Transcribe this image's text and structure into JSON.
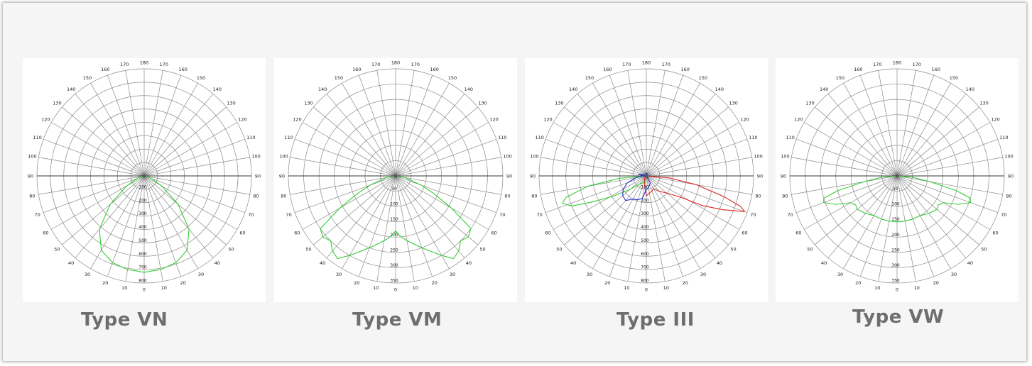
{
  "chart_data": [
    {
      "type": "polar",
      "caption": "Type VN",
      "angle_labels": [
        "0",
        "10",
        "20",
        "30",
        "40",
        "50",
        "60",
        "70",
        "80",
        "90",
        "100",
        "110",
        "120",
        "130",
        "140",
        "150",
        "160",
        "170",
        "180"
      ],
      "radial_labels": [
        "100",
        "200",
        "300",
        "400",
        "500",
        "600",
        "700",
        "800"
      ],
      "radial_max": 800,
      "grid": true,
      "series": [
        {
          "color": "#33cc33",
          "points": [
            [
              0,
              720
            ],
            [
              10,
              710
            ],
            [
              20,
              690
            ],
            [
              30,
              640
            ],
            [
              40,
              520
            ],
            [
              50,
              330
            ],
            [
              60,
              150
            ],
            [
              70,
              60
            ],
            [
              80,
              20
            ],
            [
              90,
              0
            ],
            [
              -10,
              710
            ],
            [
              -20,
              690
            ],
            [
              -30,
              640
            ],
            [
              -40,
              520
            ],
            [
              -50,
              330
            ],
            [
              -60,
              150
            ],
            [
              -70,
              60
            ],
            [
              -80,
              20
            ],
            [
              -90,
              0
            ]
          ]
        }
      ]
    },
    {
      "type": "polar",
      "caption": "Type VM",
      "angle_labels": [
        "0",
        "10",
        "20",
        "30",
        "40",
        "50",
        "60",
        "70",
        "80",
        "90",
        "100",
        "110",
        "120",
        "130",
        "140",
        "150",
        "160",
        "170",
        "180"
      ],
      "radial_labels": [
        "50",
        "100",
        "150",
        "200",
        "250",
        "300",
        "350"
      ],
      "radial_max": 350,
      "grid": true,
      "series": [
        {
          "color": "#33cc33",
          "points": [
            [
              0,
              180
            ],
            [
              5,
              200
            ],
            [
              10,
              215
            ],
            [
              20,
              250
            ],
            [
              30,
              300
            ],
            [
              35,
              330
            ],
            [
              40,
              320
            ],
            [
              45,
              300
            ],
            [
              50,
              310
            ],
            [
              55,
              300
            ],
            [
              60,
              210
            ],
            [
              65,
              140
            ],
            [
              70,
              90
            ],
            [
              80,
              30
            ],
            [
              90,
              0
            ],
            [
              -5,
              200
            ],
            [
              -10,
              215
            ],
            [
              -20,
              250
            ],
            [
              -30,
              300
            ],
            [
              -35,
              330
            ],
            [
              -40,
              320
            ],
            [
              -45,
              300
            ],
            [
              -50,
              310
            ],
            [
              -55,
              300
            ],
            [
              -60,
              210
            ],
            [
              -65,
              140
            ],
            [
              -70,
              90
            ],
            [
              -80,
              30
            ],
            [
              -90,
              0
            ]
          ]
        }
      ]
    },
    {
      "type": "polar",
      "caption": "Type III",
      "angle_labels": [
        "0",
        "10",
        "20",
        "30",
        "40",
        "50",
        "60",
        "70",
        "80",
        "90",
        "100",
        "110",
        "120",
        "130",
        "140",
        "150",
        "160",
        "170",
        "180"
      ],
      "radial_labels": [
        "100",
        "200",
        "300",
        "400",
        "500",
        "600",
        "700",
        "800"
      ],
      "radial_max": 800,
      "grid": true,
      "series": [
        {
          "color": "#dd2222",
          "points": [
            [
              90,
              0
            ],
            [
              85,
              170
            ],
            [
              80,
              380
            ],
            [
              75,
              600
            ],
            [
              72,
              740
            ],
            [
              70,
              780
            ],
            [
              66,
              620
            ],
            [
              62,
              470
            ],
            [
              58,
              300
            ],
            [
              50,
              200
            ],
            [
              40,
              150
            ],
            [
              30,
              110
            ],
            [
              20,
              120
            ],
            [
              10,
              130
            ],
            [
              0,
              150
            ],
            [
              -10,
              70
            ],
            [
              -20,
              40
            ],
            [
              -40,
              20
            ],
            [
              -90,
              0
            ]
          ]
        },
        {
          "color": "#33cc33",
          "points": [
            [
              -90,
              0
            ],
            [
              -85,
              200
            ],
            [
              -80,
              440
            ],
            [
              -75,
              620
            ],
            [
              -72,
              660
            ],
            [
              -68,
              600
            ],
            [
              -64,
              440
            ],
            [
              -58,
              280
            ],
            [
              -50,
              150
            ],
            [
              -40,
              80
            ],
            [
              -30,
              60
            ],
            [
              -20,
              50
            ],
            [
              -10,
              40
            ],
            [
              0,
              30
            ]
          ]
        },
        {
          "color": "#2233cc",
          "points": [
            [
              0,
              100
            ],
            [
              -10,
              170
            ],
            [
              -20,
              190
            ],
            [
              -30,
              200
            ],
            [
              -40,
              240
            ],
            [
              -50,
              230
            ],
            [
              -60,
              200
            ],
            [
              -70,
              150
            ],
            [
              -80,
              80
            ],
            [
              -90,
              10
            ],
            [
              -100,
              60
            ],
            [
              -110,
              30
            ],
            [
              -120,
              20
            ],
            [
              -140,
              10
            ],
            [
              -170,
              20
            ],
            [
              170,
              20
            ],
            [
              140,
              10
            ],
            [
              110,
              10
            ],
            [
              90,
              0
            ],
            [
              30,
              60
            ],
            [
              10,
              90
            ],
            [
              0,
              100
            ]
          ]
        }
      ]
    },
    {
      "type": "polar",
      "caption": "Type VW",
      "angle_labels": [
        "0",
        "10",
        "20",
        "30",
        "40",
        "50",
        "60",
        "70",
        "80",
        "90",
        "100",
        "110",
        "120",
        "130",
        "140",
        "150",
        "160",
        "170",
        "180"
      ],
      "radial_labels": [
        "50",
        "100",
        "150",
        "200",
        "250",
        "300",
        "350"
      ],
      "radial_max": 350,
      "grid": true,
      "series": [
        {
          "color": "#33cc33",
          "points": [
            [
              0,
              150
            ],
            [
              10,
              150
            ],
            [
              20,
              150
            ],
            [
              30,
              150
            ],
            [
              40,
              160
            ],
            [
              50,
              170
            ],
            [
              55,
              165
            ],
            [
              60,
              175
            ],
            [
              65,
              220
            ],
            [
              70,
              255
            ],
            [
              73,
              250
            ],
            [
              76,
              200
            ],
            [
              80,
              110
            ],
            [
              85,
              50
            ],
            [
              90,
              0
            ],
            [
              -10,
              150
            ],
            [
              -20,
              150
            ],
            [
              -30,
              150
            ],
            [
              -40,
              160
            ],
            [
              -50,
              170
            ],
            [
              -55,
              165
            ],
            [
              -60,
              175
            ],
            [
              -65,
              220
            ],
            [
              -70,
              255
            ],
            [
              -73,
              250
            ],
            [
              -76,
              200
            ],
            [
              -80,
              110
            ],
            [
              -85,
              50
            ],
            [
              -90,
              0
            ]
          ]
        }
      ]
    }
  ]
}
